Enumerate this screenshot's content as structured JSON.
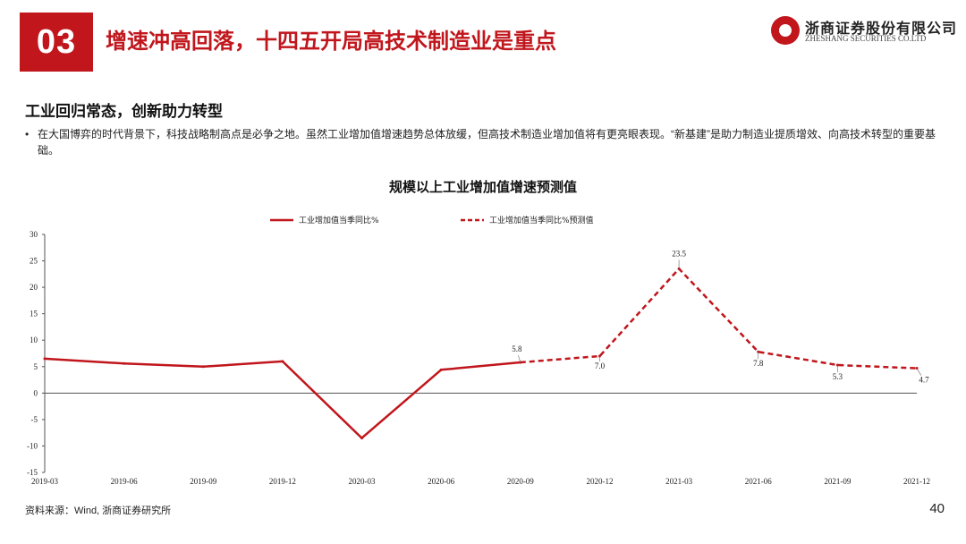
{
  "header": {
    "section_number": "03",
    "title": "增速冲高回落，十四五开局高技术制造业是重点",
    "logo_cn": "浙商证券股份有限公司",
    "logo_en": "ZHESHANG SECURITIES CO.LTD"
  },
  "content": {
    "subtitle": "工业回归常态，创新助力转型",
    "bullet_symbol": "•",
    "bullet_text": "在大国博弈的时代背景下，科技战略制高点是必争之地。虽然工业增加值增速趋势总体放缓，但高技术制造业增加值将有更亮眼表现。“新基建”是助力制造业提质增效、向高技术转型的重要基础。"
  },
  "chart_data": {
    "type": "line",
    "title": "规模以上工业增加值增速预测值",
    "categories": [
      "2019-03",
      "2019-06",
      "2019-09",
      "2019-12",
      "2020-03",
      "2020-06",
      "2020-09",
      "2020-12",
      "2021-03",
      "2021-06",
      "2021-09",
      "2021-12"
    ],
    "y_ticks": [
      "30",
      "25",
      "20",
      "15",
      "10",
      "5",
      "0",
      "-5",
      "-10",
      "-15"
    ],
    "ylim": [
      -15,
      30
    ],
    "legend_position": "top",
    "series": [
      {
        "name": "工业增加值当季同比%",
        "style": "solid",
        "color": "#c0161c",
        "values": [
          6.5,
          5.6,
          5.0,
          6.0,
          -8.5,
          4.4,
          5.8,
          null,
          null,
          null,
          null,
          null
        ]
      },
      {
        "name": "工业增加值当季同比%预测值",
        "style": "dashed",
        "color": "#c0161c",
        "values": [
          null,
          null,
          null,
          null,
          null,
          null,
          5.8,
          7.0,
          23.5,
          7.8,
          5.3,
          4.7
        ]
      }
    ],
    "data_labels": [
      {
        "category_index": 6,
        "value": 5.8,
        "text": "5.8"
      },
      {
        "category_index": 7,
        "value": 7.0,
        "text": "7.0"
      },
      {
        "category_index": 8,
        "value": 23.5,
        "text": "23.5"
      },
      {
        "category_index": 9,
        "value": 7.8,
        "text": "7.8"
      },
      {
        "category_index": 10,
        "value": 5.3,
        "text": "5.3"
      },
      {
        "category_index": 11,
        "value": 4.7,
        "text": "4.7"
      }
    ]
  },
  "footer": {
    "source": "资料来源：Wind, 浙商证券研究所",
    "page_number": "40"
  }
}
